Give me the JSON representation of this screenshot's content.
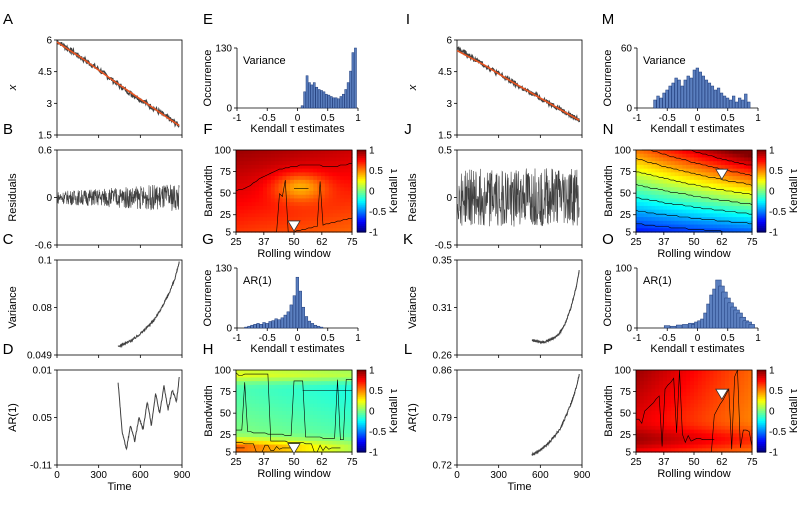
{
  "figure": {
    "panel_letters": [
      "A",
      "B",
      "C",
      "D",
      "E",
      "F",
      "G",
      "H",
      "I",
      "J",
      "K",
      "L",
      "M",
      "N",
      "O",
      "P"
    ],
    "colors": {
      "series": "#404040",
      "trend": "#e8531f",
      "hist_fill": "#5b7fbf",
      "hist_edge": "#1d3a7a",
      "marker": "#ffffff"
    },
    "colorbar": {
      "label": "Kendall τ",
      "ticks": [
        "1",
        "0.5",
        "0",
        "-0.5",
        "-1"
      ],
      "colormap": "jet"
    }
  },
  "chart_data": [
    {
      "panel": "A",
      "type": "line",
      "ylabel": "x",
      "yticks": [
        "6",
        "4.5",
        "3",
        "1.5"
      ],
      "xticks": [],
      "ylim": [
        1.5,
        6
      ],
      "xlim": [
        0,
        900
      ],
      "series": [
        {
          "role": "data",
          "x": [
            0,
            100,
            200,
            300,
            400,
            500,
            600,
            700,
            800,
            880
          ],
          "y": [
            5.95,
            5.5,
            5.05,
            4.6,
            4.1,
            3.6,
            3.2,
            2.75,
            2.3,
            1.95
          ]
        },
        {
          "role": "trend",
          "x": [
            0,
            200,
            400,
            600,
            800,
            880
          ],
          "y": [
            5.9,
            5.05,
            4.1,
            3.2,
            2.3,
            1.95
          ]
        }
      ]
    },
    {
      "panel": "B",
      "type": "line",
      "ylabel": "Residuals",
      "yticks": [
        "0.6",
        "0",
        "-0.6"
      ],
      "ylim": [
        -0.6,
        0.6
      ],
      "xlim": [
        0,
        900
      ],
      "series": [
        {
          "role": "data",
          "x": [
            0,
            880
          ],
          "amplitude_start": 0.08,
          "amplitude_end": 0.18
        }
      ]
    },
    {
      "panel": "C",
      "type": "line",
      "ylabel": "Variance",
      "yticks": [
        "0.1",
        "0.08",
        "0.049"
      ],
      "ylim": [
        0.049,
        0.1
      ],
      "xlim": [
        0,
        900
      ],
      "series": [
        {
          "role": "data",
          "x": [
            440,
            500,
            550,
            600,
            650,
            700,
            750,
            800,
            850,
            880
          ],
          "y": [
            0.0535,
            0.0555,
            0.0575,
            0.0605,
            0.064,
            0.068,
            0.074,
            0.081,
            0.09,
            0.099
          ]
        }
      ]
    },
    {
      "panel": "D",
      "type": "line",
      "ylabel": "AR(1)",
      "yticks": [
        "0.01",
        "0.05",
        "-0.11"
      ],
      "xlabel": "Time",
      "xticks": [
        "0",
        "300",
        "600",
        "900"
      ],
      "ylim": [
        -0.11,
        0.01
      ],
      "xlim": [
        0,
        900
      ],
      "series": [
        {
          "role": "data",
          "x": [
            440,
            470,
            500,
            530,
            560,
            590,
            620,
            650,
            680,
            710,
            740,
            770,
            800,
            830,
            860,
            880
          ],
          "y": [
            -0.005,
            -0.07,
            -0.09,
            -0.06,
            -0.08,
            -0.05,
            -0.065,
            -0.03,
            -0.06,
            -0.02,
            -0.045,
            -0.01,
            -0.04,
            -0.015,
            -0.03,
            0.0
          ]
        }
      ]
    },
    {
      "panel": "E",
      "type": "bar",
      "title": "Variance",
      "ylabel": "Occurrence",
      "xlabel": "Kendall τ estimates",
      "xticks": [
        "-1",
        "-0.5",
        "0",
        "0.5",
        "1"
      ],
      "yticks": [
        "130",
        "0"
      ],
      "xlim": [
        -1,
        1
      ],
      "ylim": [
        0,
        130
      ],
      "bins": [
        0.08,
        0.12,
        0.16,
        0.2,
        0.24,
        0.28,
        0.32,
        0.36,
        0.4,
        0.44,
        0.48,
        0.52,
        0.56,
        0.6,
        0.64,
        0.68,
        0.72,
        0.76,
        0.8,
        0.84,
        0.88,
        0.92,
        0.96
      ],
      "values": [
        5,
        35,
        70,
        55,
        50,
        55,
        45,
        40,
        38,
        35,
        30,
        28,
        25,
        22,
        22,
        20,
        25,
        30,
        40,
        55,
        80,
        120,
        130
      ]
    },
    {
      "panel": "F",
      "type": "heatmap",
      "xlabel": "Rolling window",
      "ylabel": "Bandwidth",
      "xticks": [
        "25",
        "37",
        "50",
        "62",
        "75"
      ],
      "yticks": [
        "100",
        "75",
        "50",
        "25",
        "5"
      ],
      "field": "F",
      "marker": {
        "x": 50,
        "y": 12
      }
    },
    {
      "panel": "G",
      "type": "bar",
      "title": "AR(1)",
      "ylabel": "Occurrence",
      "xlabel": "Kendall τ estimates",
      "xticks": [
        "-1",
        "-0.5",
        "0",
        "0.5",
        "1"
      ],
      "yticks": [
        "130",
        "0"
      ],
      "xlim": [
        -1,
        1
      ],
      "ylim": [
        0,
        130
      ],
      "bins": [
        -0.85,
        -0.8,
        -0.75,
        -0.7,
        -0.65,
        -0.6,
        -0.55,
        -0.5,
        -0.45,
        -0.4,
        -0.35,
        -0.3,
        -0.25,
        -0.2,
        -0.15,
        -0.1,
        -0.05,
        0.0,
        0.05,
        0.1,
        0.15,
        0.2,
        0.25,
        0.3,
        0.35,
        0.4
      ],
      "values": [
        2,
        4,
        6,
        8,
        10,
        8,
        12,
        10,
        14,
        16,
        20,
        18,
        22,
        28,
        35,
        50,
        70,
        110,
        80,
        45,
        25,
        15,
        10,
        6,
        4,
        2
      ]
    },
    {
      "panel": "H",
      "type": "heatmap",
      "xlabel": "Rolling window",
      "ylabel": "Bandwidth",
      "xticks": [
        "25",
        "37",
        "50",
        "62",
        "75"
      ],
      "yticks": [
        "100",
        "75",
        "50",
        "25",
        "5"
      ],
      "field": "H",
      "marker": {
        "x": 50,
        "y": 9
      }
    },
    {
      "panel": "I",
      "type": "line",
      "ylabel": "x",
      "yticks": [
        "6",
        "4.5",
        "3",
        "1.5"
      ],
      "ylim": [
        1.5,
        6
      ],
      "xlim": [
        0,
        900
      ],
      "series": [
        {
          "role": "data",
          "x": [
            0,
            100,
            200,
            300,
            400,
            500,
            600,
            700,
            800,
            880
          ],
          "y": [
            5.6,
            5.2,
            4.8,
            4.4,
            4.0,
            3.6,
            3.25,
            2.9,
            2.5,
            2.2
          ]
        },
        {
          "role": "trend",
          "x": [
            0,
            200,
            400,
            600,
            800,
            880
          ],
          "y": [
            5.5,
            4.8,
            4.0,
            3.25,
            2.5,
            2.2
          ]
        }
      ]
    },
    {
      "panel": "J",
      "type": "line",
      "ylabel": "Residuals",
      "yticks": [
        "0.5",
        "0",
        "-0.5"
      ],
      "ylim": [
        -0.5,
        0.5
      ],
      "xlim": [
        0,
        900
      ],
      "series": [
        {
          "role": "data",
          "x": [
            0,
            880
          ],
          "amplitude_start": 0.3,
          "amplitude_end": 0.32
        }
      ]
    },
    {
      "panel": "K",
      "type": "line",
      "ylabel": "Variance",
      "yticks": [
        "0.35",
        "0.31",
        "0.26"
      ],
      "ylim": [
        0.26,
        0.35
      ],
      "xlim": [
        0,
        900
      ],
      "series": [
        {
          "role": "data",
          "x": [
            540,
            580,
            620,
            660,
            700,
            740,
            780,
            820,
            860,
            880
          ],
          "y": [
            0.274,
            0.273,
            0.272,
            0.274,
            0.276,
            0.281,
            0.29,
            0.305,
            0.325,
            0.34
          ]
        }
      ]
    },
    {
      "panel": "L",
      "type": "line",
      "ylabel": "AR(1)",
      "yticks": [
        "0.86",
        "0.79",
        "0.72"
      ],
      "xlabel": "Time",
      "xticks": [
        "0",
        "300",
        "600",
        "900"
      ],
      "ylim": [
        0.72,
        0.86
      ],
      "xlim": [
        0,
        900
      ],
      "series": [
        {
          "role": "data",
          "x": [
            540,
            580,
            620,
            660,
            700,
            740,
            780,
            820,
            860,
            880
          ],
          "y": [
            0.735,
            0.74,
            0.745,
            0.752,
            0.762,
            0.772,
            0.79,
            0.81,
            0.835,
            0.853
          ]
        }
      ]
    },
    {
      "panel": "M",
      "type": "bar",
      "title": "Variance",
      "ylabel": "Occurrence",
      "xlabel": "Kendall τ estimates",
      "xticks": [
        "-1",
        "-0.5",
        "0",
        "0.5",
        "1"
      ],
      "yticks": [
        "60",
        "0"
      ],
      "xlim": [
        -1,
        1
      ],
      "ylim": [
        0,
        60
      ],
      "bins": [
        -0.7,
        -0.65,
        -0.6,
        -0.55,
        -0.5,
        -0.45,
        -0.4,
        -0.35,
        -0.3,
        -0.25,
        -0.2,
        -0.15,
        -0.1,
        -0.05,
        0.0,
        0.05,
        0.1,
        0.15,
        0.2,
        0.25,
        0.3,
        0.35,
        0.4,
        0.45,
        0.5,
        0.55,
        0.6,
        0.65,
        0.7,
        0.75,
        0.8,
        0.85
      ],
      "values": [
        8,
        12,
        10,
        15,
        18,
        22,
        25,
        30,
        28,
        22,
        28,
        32,
        30,
        38,
        40,
        36,
        32,
        28,
        25,
        22,
        18,
        20,
        15,
        12,
        10,
        8,
        12,
        6,
        10,
        8,
        14,
        6
      ]
    },
    {
      "panel": "N",
      "type": "heatmap",
      "xlabel": "Rolling window",
      "ylabel": "Bandwidth",
      "xticks": [
        "25",
        "37",
        "50",
        "62",
        "75"
      ],
      "yticks": [
        "100",
        "75",
        "50",
        "25",
        "5"
      ],
      "field": "N",
      "marker": {
        "x": 62,
        "y": 72
      }
    },
    {
      "panel": "O",
      "type": "bar",
      "title": "AR(1)",
      "ylabel": "Occurrence",
      "xlabel": "Kendall τ estimates",
      "xticks": [
        "-1",
        "-0.5",
        "0",
        "0.5",
        "1"
      ],
      "yticks": [
        "100",
        "0"
      ],
      "xlim": [
        -1,
        1
      ],
      "ylim": [
        0,
        100
      ],
      "bins": [
        -0.5,
        -0.4,
        -0.3,
        -0.2,
        -0.1,
        -0.05,
        0.0,
        0.05,
        0.1,
        0.15,
        0.2,
        0.25,
        0.3,
        0.35,
        0.4,
        0.45,
        0.5,
        0.55,
        0.6,
        0.65,
        0.7,
        0.75,
        0.8,
        0.85,
        0.9
      ],
      "values": [
        4,
        3,
        5,
        6,
        8,
        6,
        10,
        12,
        15,
        25,
        40,
        55,
        65,
        80,
        70,
        60,
        50,
        42,
        35,
        30,
        25,
        18,
        12,
        10,
        6
      ]
    },
    {
      "panel": "P",
      "type": "heatmap",
      "xlabel": "Rolling window",
      "ylabel": "Bandwidth",
      "xticks": [
        "25",
        "37",
        "50",
        "62",
        "75"
      ],
      "yticks": [
        "100",
        "75",
        "50",
        "25",
        "5"
      ],
      "field": "P",
      "marker": {
        "x": 62,
        "y": 72
      }
    }
  ]
}
